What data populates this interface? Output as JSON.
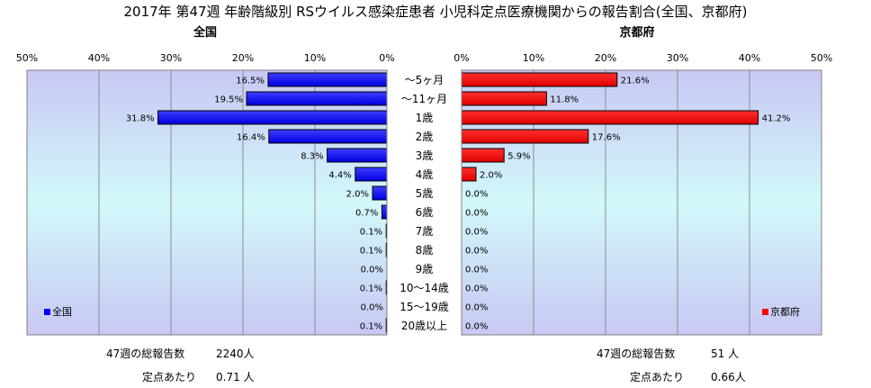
{
  "chart_data": {
    "type": "bar",
    "title": "2017年 第47週 年齢階級別 RSウイルス感染症患者 小児科定点医療機関からの報告割合(全国、京都府)",
    "categories": [
      "～5ヶ月",
      "～11ヶ月",
      "1歳",
      "2歳",
      "3歳",
      "4歳",
      "5歳",
      "6歳",
      "7歳",
      "8歳",
      "9歳",
      "10～14歳",
      "15～19歳",
      "20歳以上"
    ],
    "xlim": [
      0,
      50
    ],
    "ticks": [
      "0%",
      "10%",
      "20%",
      "30%",
      "40%",
      "50%"
    ],
    "grid": true,
    "series": [
      {
        "name": "全国",
        "subtitle": "全国",
        "color": "#0000ff",
        "values": [
          16.5,
          19.5,
          31.8,
          16.4,
          8.3,
          4.4,
          2.0,
          0.7,
          0.1,
          0.1,
          0.0,
          0.1,
          0.0,
          0.1
        ],
        "labels": [
          "16.5%",
          "19.5%",
          "31.8%",
          "16.4%",
          "8.3%",
          "4.4%",
          "2.0%",
          "0.7%",
          "0.1%",
          "0.1%",
          "0.0%",
          "0.1%",
          "0.0%",
          "0.1%"
        ],
        "legend_position": "bottom-left"
      },
      {
        "name": "京都府",
        "subtitle": "京都府",
        "color": "#ff0000",
        "values": [
          21.6,
          11.8,
          41.2,
          17.6,
          5.9,
          2.0,
          0.0,
          0.0,
          0.0,
          0.0,
          0.0,
          0.0,
          0.0,
          0.0
        ],
        "labels": [
          "21.6%",
          "11.8%",
          "41.2%",
          "17.6%",
          "5.9%",
          "2.0%",
          "0.0%",
          "0.0%",
          "0.0%",
          "0.0%",
          "0.0%",
          "0.0%",
          "0.0%",
          "0.0%"
        ],
        "legend_position": "bottom-right"
      }
    ],
    "footer": {
      "national": {
        "total_label": "47週の総報告数",
        "total_value": "2240人",
        "per_label": "定点あたり",
        "per_value": "0.71 人"
      },
      "kyoto": {
        "total_label": "47週の総報告数",
        "total_value": "51 人",
        "per_label": "定点あたり",
        "per_value": "0.66人"
      }
    }
  }
}
